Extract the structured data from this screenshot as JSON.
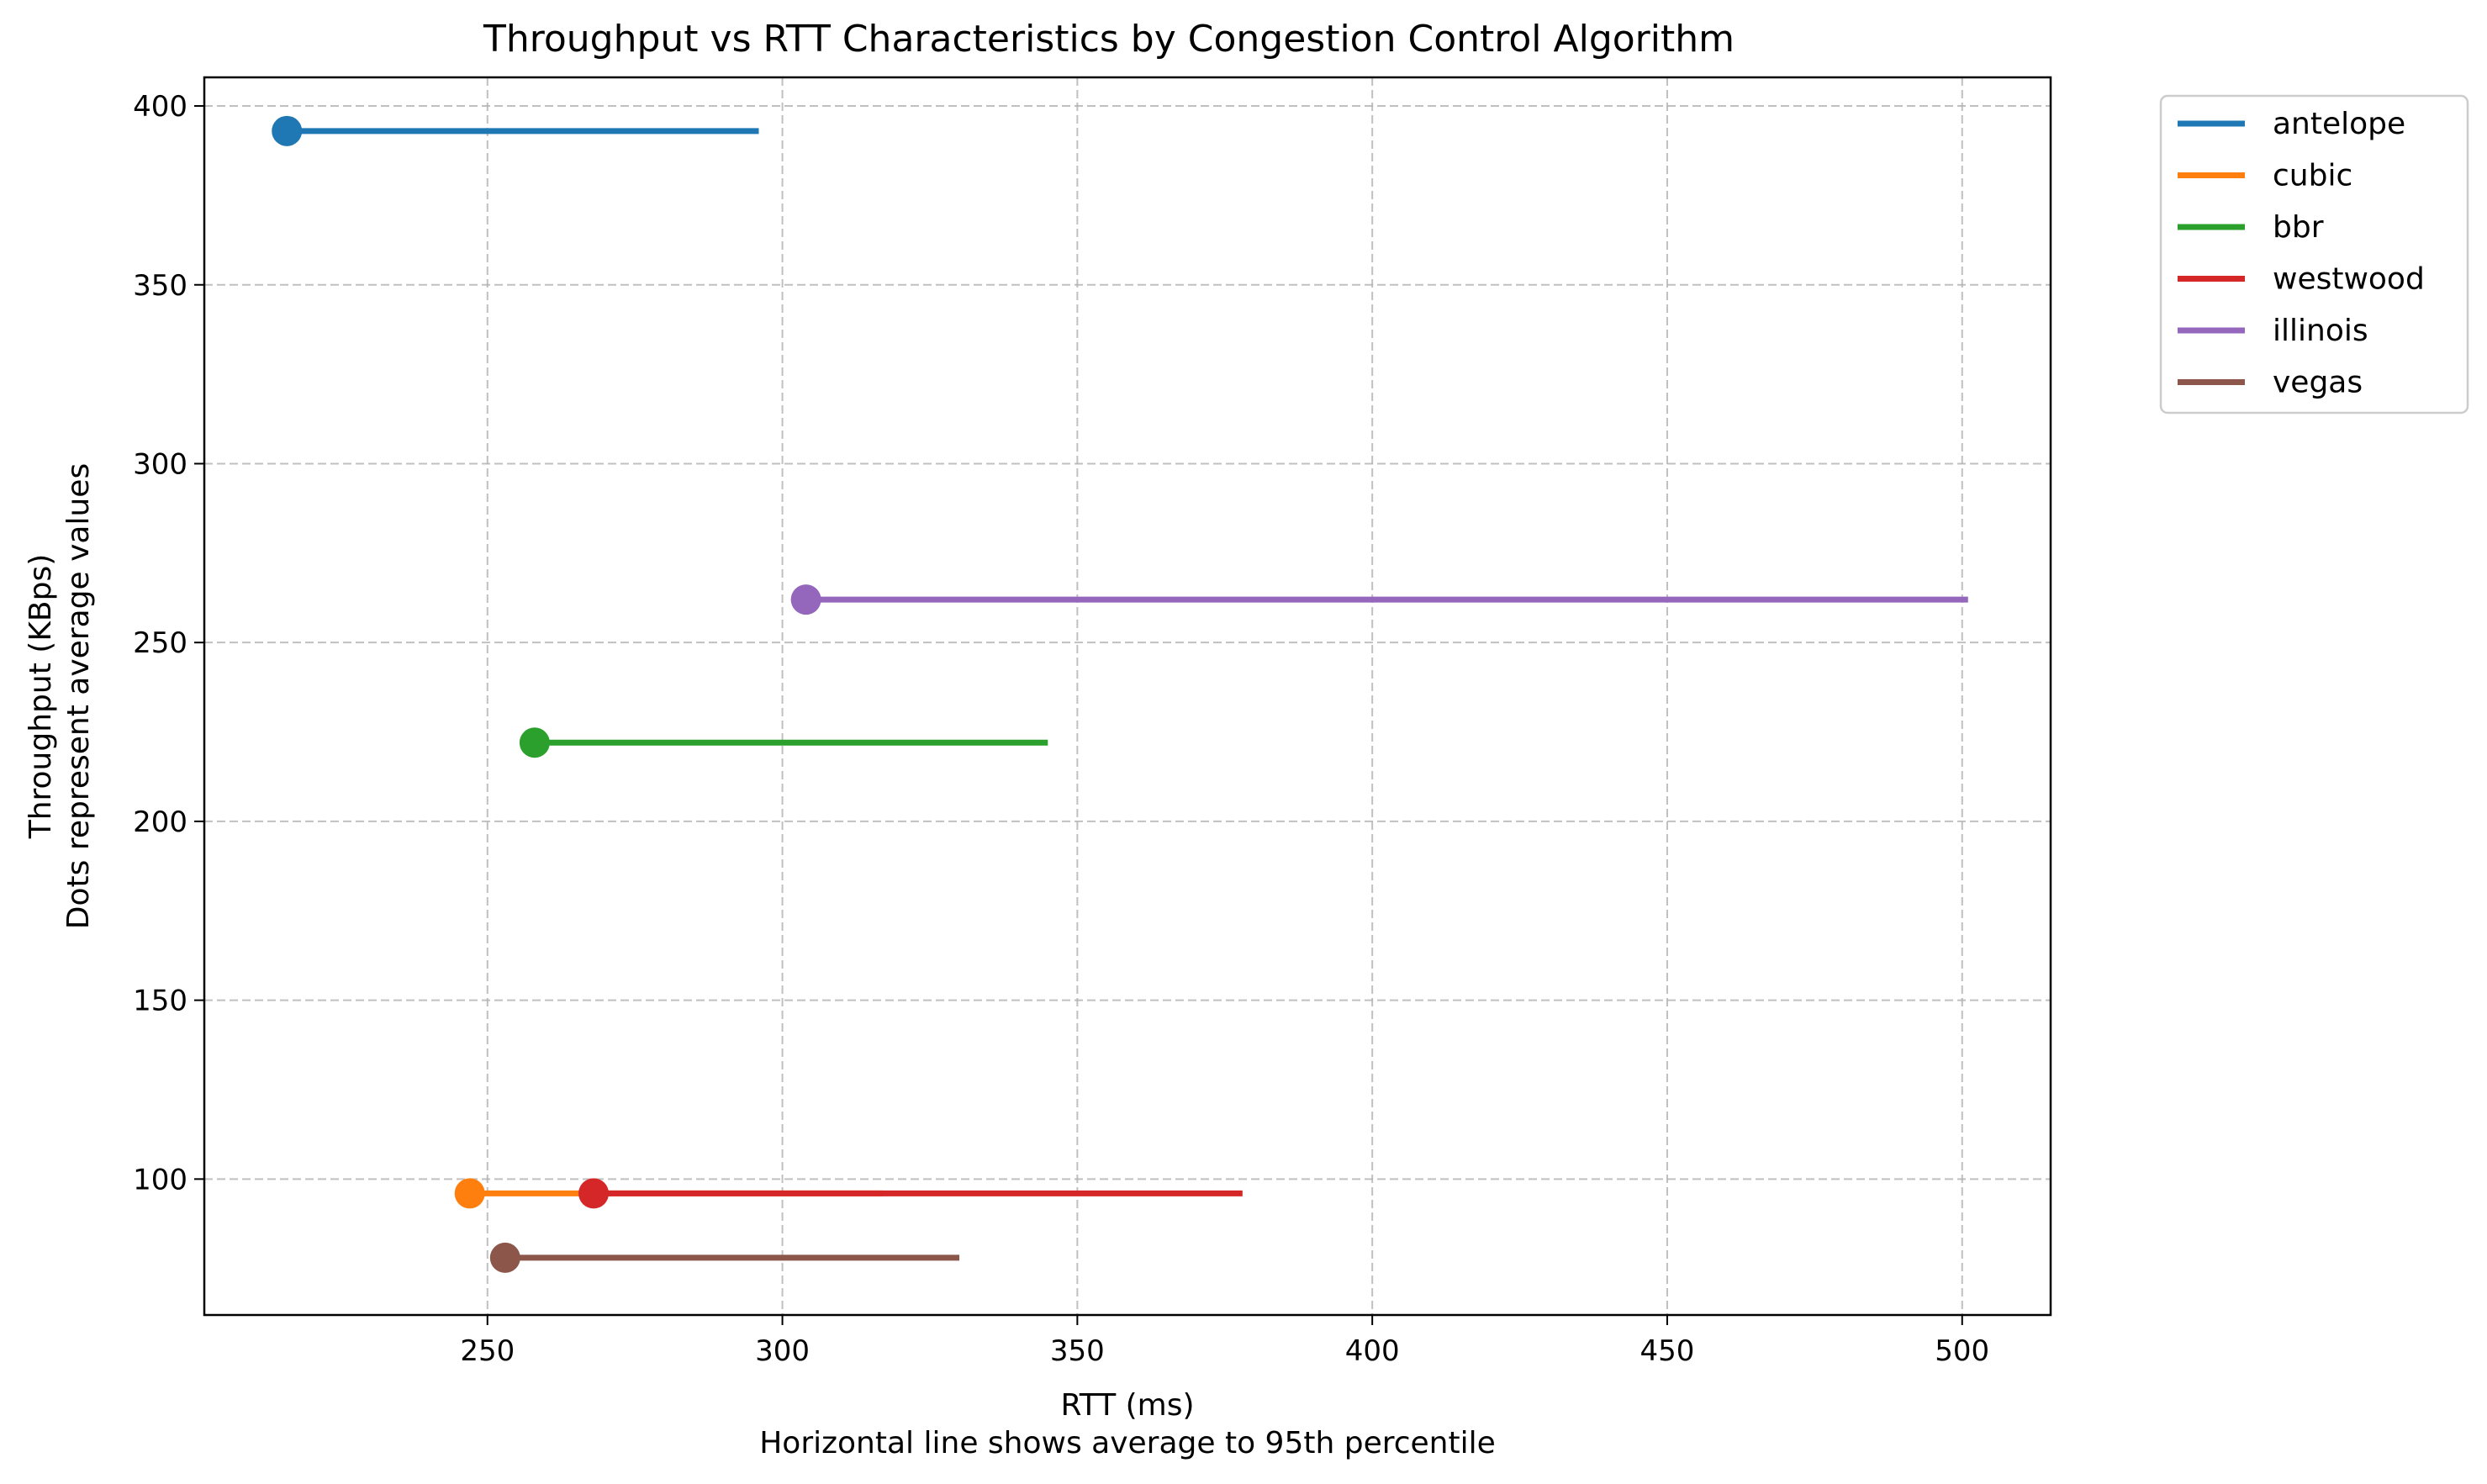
{
  "chart_data": {
    "type": "scatter",
    "title": "Throughput vs RTT Characteristics by Congestion Control Algorithm",
    "xlabel": "RTT (ms)",
    "xlabel_note": "Horizontal line shows average to 95th percentile",
    "ylabel": "Throughput (KBps)",
    "ylabel_note": "Dots represent average values",
    "xlim": [
      202,
      515
    ],
    "ylim": [
      62,
      408
    ],
    "xticks": [
      250,
      300,
      350,
      400,
      450,
      500
    ],
    "yticks": [
      100,
      150,
      200,
      250,
      300,
      350,
      400
    ],
    "grid": true,
    "legend_position": "outside-top-right",
    "series": [
      {
        "name": "antelope",
        "color": "#1f77b4",
        "rtt_avg": 216,
        "rtt_p95": 296,
        "throughput": 393
      },
      {
        "name": "cubic",
        "color": "#ff7f0e",
        "rtt_avg": 247,
        "rtt_p95": 317,
        "throughput": 96
      },
      {
        "name": "bbr",
        "color": "#2ca02c",
        "rtt_avg": 258,
        "rtt_p95": 345,
        "throughput": 222
      },
      {
        "name": "westwood",
        "color": "#d62728",
        "rtt_avg": 268,
        "rtt_p95": 378,
        "throughput": 96
      },
      {
        "name": "illinois",
        "color": "#9467bd",
        "rtt_avg": 304,
        "rtt_p95": 501,
        "throughput": 262
      },
      {
        "name": "vegas",
        "color": "#8c564b",
        "rtt_avg": 253,
        "rtt_p95": 330,
        "throughput": 78
      }
    ]
  }
}
